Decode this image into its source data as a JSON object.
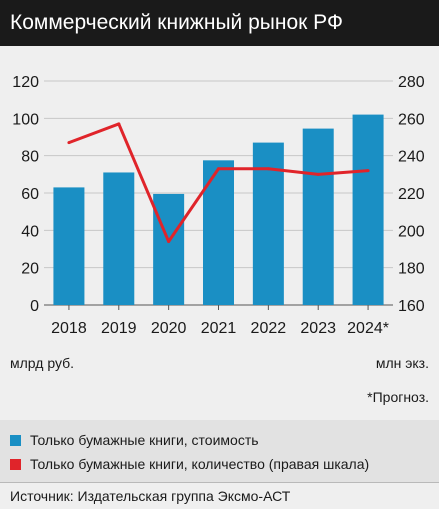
{
  "header": {
    "title": "Коммерческий книжный рынок РФ"
  },
  "chart_data": {
    "type": "bar",
    "categories": [
      "2018",
      "2019",
      "2020",
      "2021",
      "2022",
      "2023",
      "2024*"
    ],
    "series": [
      {
        "name": "Только бумажные книги, стоимость",
        "type": "bar",
        "axis": "left",
        "values": [
          63,
          71,
          59.5,
          77.5,
          87,
          94.5,
          102
        ]
      },
      {
        "name": "Только бумажные книги, количество (правая шкала)",
        "type": "line",
        "axis": "right",
        "values": [
          247,
          257,
          194,
          233,
          233,
          230,
          232
        ]
      }
    ],
    "left_axis": {
      "min": 0,
      "max": 120,
      "ticks": [
        0,
        20,
        40,
        60,
        80,
        100,
        120
      ],
      "unit": "млрд руб."
    },
    "right_axis": {
      "min": 160,
      "max": 280,
      "ticks": [
        160,
        180,
        200,
        220,
        240,
        260,
        280
      ],
      "unit": "млн экз."
    },
    "grid": true,
    "legend_position": "bottom",
    "colors": {
      "bars": "#1a8fc4",
      "line": "#e0242a"
    }
  },
  "note": "*Прогноз.",
  "legend": {
    "bar_label": "Только бумажные книги, стоимость",
    "line_label": "Только бумажные книги, количество (правая шкала)"
  },
  "source": "Источник: Издательская группа Эксмо-АСТ"
}
